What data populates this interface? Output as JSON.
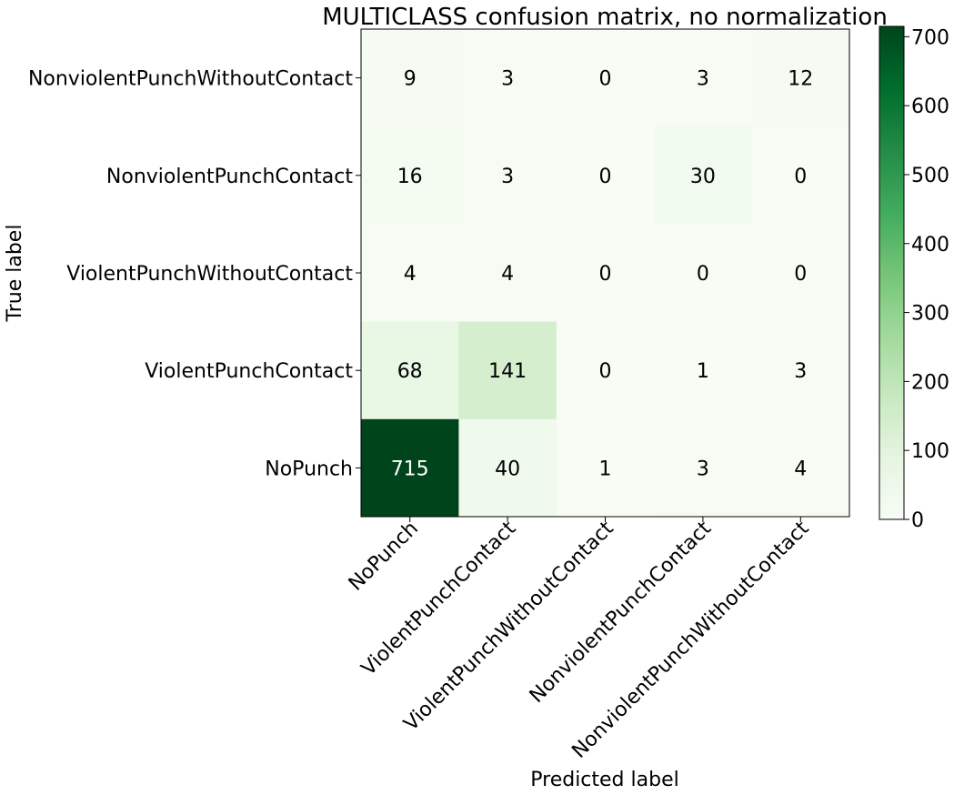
{
  "chart_data": {
    "type": "heatmap",
    "title": "MULTICLASS confusion matrix, no normalization",
    "xlabel": "Predicted label",
    "ylabel": "True label",
    "x_categories": [
      "NoPunch",
      "ViolentPunchContact",
      "ViolentPunchWithoutContact",
      "NonviolentPunchContact",
      "NonviolentPunchWithoutContact"
    ],
    "y_categories": [
      "NonviolentPunchWithoutContact",
      "NonviolentPunchContact",
      "ViolentPunchWithoutContact",
      "ViolentPunchContact",
      "NoPunch"
    ],
    "values": [
      [
        9,
        3,
        0,
        3,
        12
      ],
      [
        16,
        3,
        0,
        30,
        0
      ],
      [
        4,
        4,
        0,
        0,
        0
      ],
      [
        68,
        141,
        0,
        1,
        3
      ],
      [
        715,
        40,
        1,
        3,
        4
      ]
    ],
    "colorbar": {
      "min": 0,
      "max": 715,
      "ticks": [
        0,
        100,
        200,
        300,
        400,
        500,
        600,
        700
      ]
    },
    "colormap": "Greens",
    "colors": {
      "low": "#f7fcf5",
      "high": "#00441b",
      "text_dark": "#000000",
      "text_light": "#ffffff"
    }
  }
}
